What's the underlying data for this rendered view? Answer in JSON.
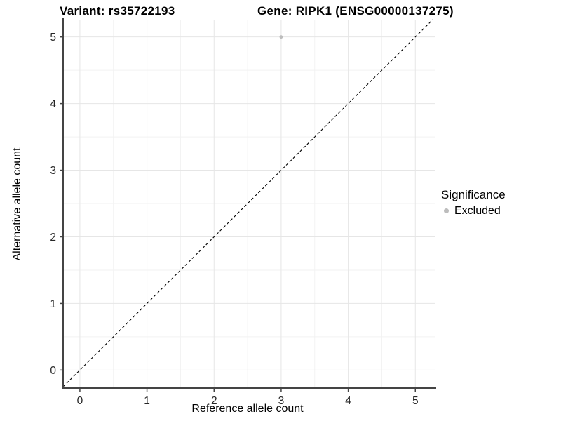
{
  "chart_data": {
    "type": "scatter",
    "titles": {
      "left": "Variant: rs35722193",
      "right": "Gene: RIPK1 (ENSG00000137275)"
    },
    "xlabel": "Reference allele count",
    "ylabel": "Alternative allele count",
    "xlim": [
      -0.25,
      5.29
    ],
    "ylim": [
      -0.27,
      5.26
    ],
    "xticks": [
      0,
      1,
      2,
      3,
      4,
      5
    ],
    "yticks": [
      0,
      1,
      2,
      3,
      4,
      5
    ],
    "minor_ticks": [
      0.5,
      1.5,
      2.5,
      3.5,
      4.5
    ],
    "grid": true,
    "points": [
      {
        "x": 3,
        "y": 5,
        "series": "Excluded"
      }
    ],
    "abline": {
      "slope": 1,
      "intercept": 0,
      "style": "dashed"
    },
    "legend": {
      "title": "Significance",
      "position": "right",
      "entries": [
        {
          "label": "Excluded",
          "color": "#bdbdbd"
        }
      ]
    },
    "colors": {
      "point": "#bdbdbd",
      "grid_major": "#e6e6e6",
      "grid_minor": "#f2f2f2",
      "axis_line": "#444444",
      "tick_label": "#262626",
      "abline": "#000000",
      "background": "#ffffff"
    }
  }
}
